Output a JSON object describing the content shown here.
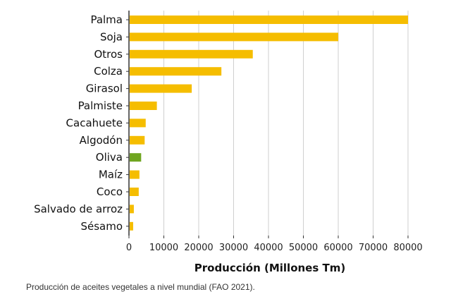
{
  "caption": "Producción de aceites vegetales a nivel mundial (FAO 2021).",
  "colors": {
    "default_bar": "#F5BD00",
    "highlight_bar": "#6FA520",
    "grid": "#cfcfcf",
    "axis": "#333333"
  },
  "chart_data": {
    "type": "bar",
    "orientation": "horizontal",
    "categories": [
      "Palma",
      "Soja",
      "Otros",
      "Colza",
      "Girasol",
      "Palmiste",
      "Cacahuete",
      "Algodón",
      "Oliva",
      "Maíz",
      "Coco",
      "Salvado de arroz",
      "Sésamo"
    ],
    "values": [
      80000,
      60000,
      35500,
      26500,
      18000,
      8000,
      4800,
      4500,
      3500,
      3000,
      2800,
      1400,
      1200
    ],
    "highlight_category": "Oliva",
    "xlabel": "Producción (Millones Tm)",
    "ylabel": "",
    "xlim": [
      0,
      80000
    ],
    "xticks": [
      0,
      10000,
      20000,
      30000,
      40000,
      50000,
      60000,
      70000,
      80000
    ],
    "grid": "vertical"
  }
}
